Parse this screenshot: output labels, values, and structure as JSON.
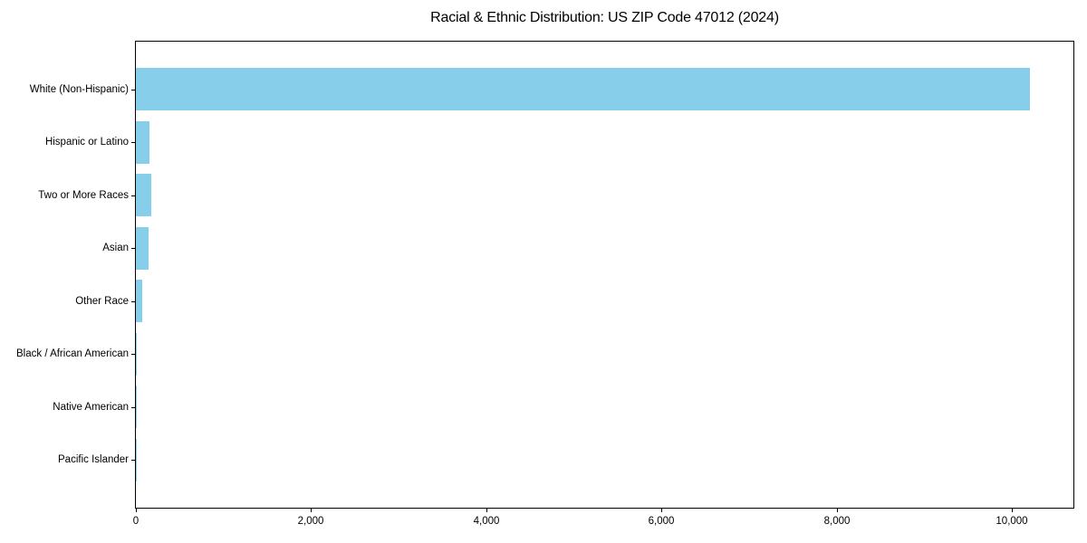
{
  "chart_data": {
    "type": "bar",
    "orientation": "horizontal",
    "title": "Racial & Ethnic Distribution: US ZIP Code 47012 (2024)",
    "categories": [
      "White (Non-Hispanic)",
      "Hispanic or Latino",
      "Two or More Races",
      "Asian",
      "Other Race",
      "Black / African American",
      "Native American",
      "Pacific Islander"
    ],
    "values": [
      10200,
      160,
      175,
      145,
      70,
      8,
      4,
      2
    ],
    "xticks": [
      0,
      2000,
      4000,
      6000,
      8000,
      10000
    ],
    "xtick_labels": [
      "0",
      "2,000",
      "4,000",
      "6,000",
      "8,000",
      "10,000"
    ],
    "xlim": [
      0,
      10700
    ],
    "xlabel": "",
    "ylabel": "",
    "bar_color": "#87CEEB",
    "spine_color": "#000000",
    "background_color": "#ffffff",
    "grid": false,
    "legend": null
  }
}
